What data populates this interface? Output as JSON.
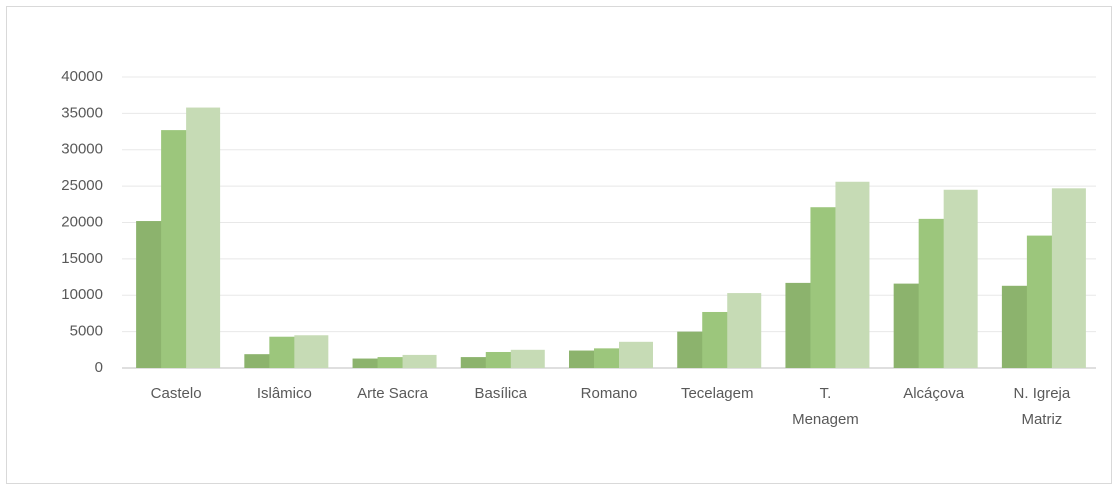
{
  "chart_data": {
    "type": "bar",
    "categories": [
      "Castelo",
      "Islâmico",
      "Arte Sacra",
      "Basílica",
      "Romano",
      "Tecelagem",
      [
        "T.",
        "Menagem"
      ],
      "Alcáçova",
      [
        "N. Igreja",
        "Matriz"
      ]
    ],
    "series": [
      {
        "color": "#8cb36d",
        "values": [
          20200,
          1900,
          1300,
          1500,
          2400,
          5000,
          11700,
          11600,
          11300
        ]
      },
      {
        "color": "#9cc67c",
        "values": [
          32700,
          4300,
          1500,
          2200,
          2700,
          7700,
          22100,
          20500,
          18200
        ]
      },
      {
        "color": "#c6dbb5",
        "values": [
          35800,
          4500,
          1800,
          2500,
          3600,
          10300,
          25600,
          24500,
          24700
        ]
      }
    ],
    "ylim": [
      0,
      40000
    ],
    "yticks": [
      0,
      5000,
      10000,
      15000,
      20000,
      25000,
      30000,
      35000,
      40000
    ],
    "grid": true
  }
}
